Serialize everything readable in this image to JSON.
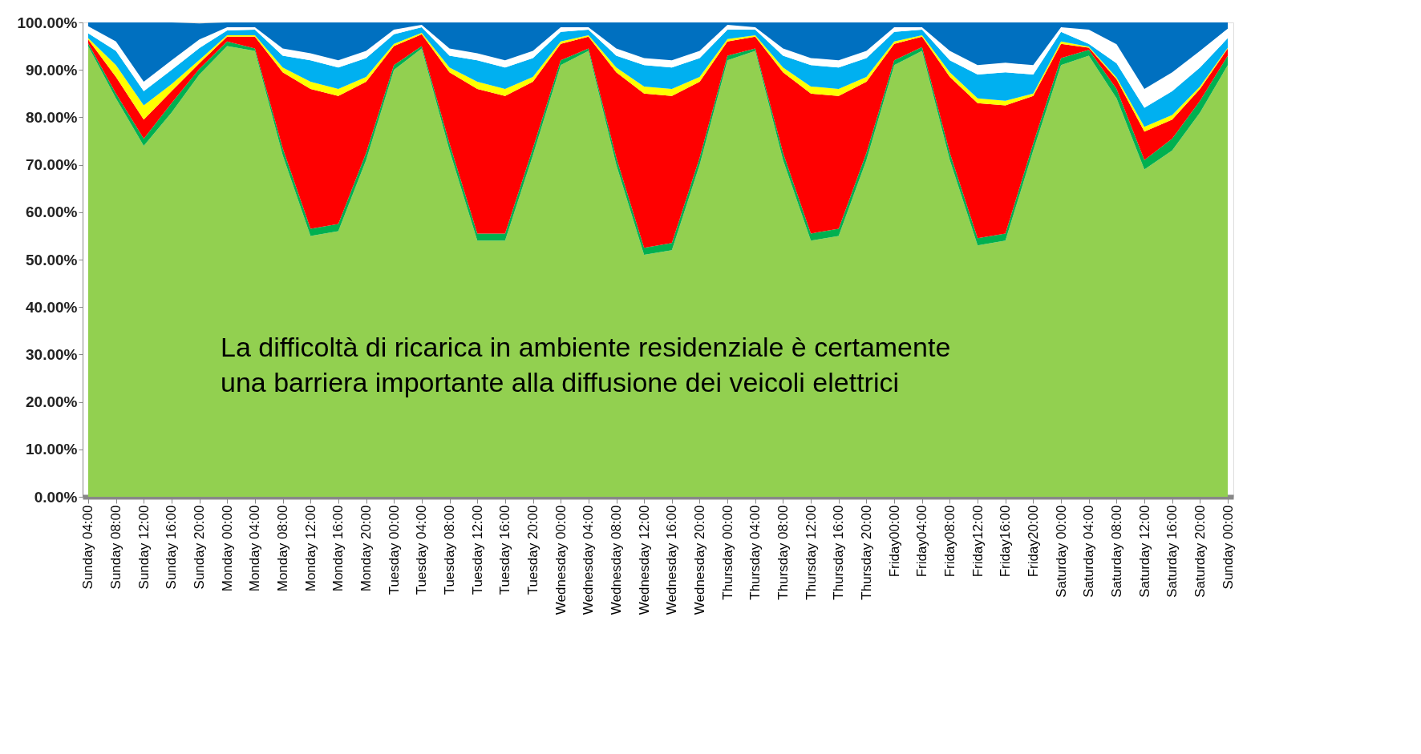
{
  "chart_data": {
    "type": "area",
    "stacked": true,
    "grid": false,
    "legend": false,
    "categories": [
      "Sunday 04:00",
      "Sunday 08:00",
      "Sunday 12:00",
      "Sunday 16:00",
      "Sunday 20:00",
      "Monday 00:00",
      "Monday 04:00",
      "Monday 08:00",
      "Monday 12:00",
      "Monday 16:00",
      "Monday 20:00",
      "Tuesday 00:00",
      "Tuesday 04:00",
      "Tuesday 08:00",
      "Tuesday 12:00",
      "Tuesday 16:00",
      "Tuesday 20:00",
      "Wednesday 00:00",
      "Wednesday 04:00",
      "Wednesday 08:00",
      "Wednesday 12:00",
      "Wednesday 16:00",
      "Wednesday 20:00",
      "Thursday 00:00",
      "Thursday 04:00",
      "Thursday 08:00",
      "Thursday 12:00",
      "Thursday 16:00",
      "Thursday 20:00",
      "Friday00:00",
      "Friday04:00",
      "Friday08:00",
      "Friday12:00",
      "Friday16:00",
      "Friday20:00",
      "Saturday 00:00",
      "Saturday 04:00",
      "Saturday 08:00",
      "Saturday 12:00",
      "Saturday 16:00",
      "Saturday 20:00",
      "Sunday 00:00"
    ],
    "ylim": [
      0,
      100
    ],
    "yticks": [
      {
        "value": 0,
        "label": "0.00%"
      },
      {
        "value": 10,
        "label": "10.00%"
      },
      {
        "value": 20,
        "label": "20.00%"
      },
      {
        "value": 30,
        "label": "30.00%"
      },
      {
        "value": 40,
        "label": "40.00%"
      },
      {
        "value": 50,
        "label": "50.00%"
      },
      {
        "value": 60,
        "label": "60.00%"
      },
      {
        "value": 70,
        "label": "70.00%"
      },
      {
        "value": 80,
        "label": "80.00%"
      },
      {
        "value": 90,
        "label": "90.00%"
      },
      {
        "value": 100,
        "label": "100.00%"
      }
    ],
    "series": [
      {
        "color": "#92d050",
        "values": [
          95,
          84,
          74,
          81,
          89,
          95,
          94,
          72,
          55,
          56,
          71,
          90,
          94.5,
          73,
          54,
          54,
          72,
          91,
          94,
          70,
          51,
          52,
          70,
          92,
          94,
          71,
          54,
          55,
          71,
          91,
          94,
          71,
          53,
          54,
          73,
          91,
          93,
          84,
          69,
          73,
          81,
          91
        ]
      },
      {
        "color": "#00b050",
        "values": [
          0.6,
          1,
          1.5,
          2,
          1.2,
          1,
          0.5,
          1.5,
          1.5,
          1.5,
          1.5,
          1,
          0.5,
          1.5,
          1.5,
          1.5,
          1.5,
          1,
          0.5,
          1.5,
          1.5,
          1.5,
          1.5,
          1,
          0.5,
          1.5,
          1.5,
          1.5,
          1.5,
          1,
          0.8,
          1.5,
          1.5,
          1.5,
          1.5,
          1.5,
          1.2,
          2,
          2,
          2.5,
          2.5,
          2
        ]
      },
      {
        "color": "#ff0000",
        "values": [
          0.8,
          3.5,
          4,
          2.5,
          1.2,
          1,
          2.5,
          16,
          29.5,
          27,
          15,
          4,
          2.5,
          15,
          30.5,
          29,
          14,
          3.5,
          2.5,
          18,
          32.5,
          31,
          16,
          3,
          2.5,
          17,
          29.5,
          28,
          15,
          3.5,
          2.2,
          16,
          28.5,
          27,
          10,
          3,
          0.5,
          2,
          6,
          4,
          2.5,
          1.5
        ]
      },
      {
        "color": "#ffff00",
        "values": [
          0.3,
          2.5,
          3,
          1.5,
          0.7,
          0.3,
          0.3,
          1,
          1.5,
          1.5,
          1,
          0.5,
          0.3,
          1,
          1.5,
          1.5,
          1,
          0.5,
          0.3,
          1,
          1.5,
          1.5,
          1,
          0.5,
          0.3,
          1,
          1.5,
          1.5,
          1,
          0.5,
          0.3,
          1,
          1,
          1,
          0.5,
          0.5,
          0.2,
          0.4,
          1,
          1,
          0.5,
          0.2
        ]
      },
      {
        "color": "#00b0f0",
        "values": [
          1,
          3,
          3,
          3,
          2.5,
          1,
          1.2,
          2.5,
          4.5,
          4.5,
          4,
          2,
          1.2,
          2.5,
          4.5,
          4.5,
          4,
          2,
          1.2,
          2.5,
          4.5,
          4.5,
          4,
          2,
          1.2,
          2.5,
          4.5,
          4.5,
          4,
          2,
          1.2,
          2.5,
          5,
          6,
          4,
          2,
          0.6,
          3,
          4,
          5,
          4,
          2
        ]
      },
      {
        "color": "#ffffff",
        "values": [
          1.5,
          2,
          2,
          2,
          1.8,
          0.7,
          0.5,
          1.5,
          1.5,
          1.5,
          1.5,
          1,
          0.5,
          1.5,
          1.5,
          1.5,
          1.5,
          1,
          0.5,
          1.5,
          1.5,
          1.5,
          1.5,
          1,
          0.5,
          1.5,
          1.5,
          1.5,
          1.5,
          1,
          0.5,
          2,
          2,
          2,
          2,
          1,
          3,
          4,
          4,
          4,
          3.5,
          2
        ]
      },
      {
        "color": "#0070c0",
        "values": [
          0.8,
          4,
          12.5,
          8,
          3.4,
          1,
          1,
          5.5,
          6.5,
          8,
          6,
          1.5,
          0.5,
          5.5,
          6.5,
          8,
          6,
          1,
          1,
          5.5,
          7.5,
          8,
          6,
          0.5,
          1,
          5.5,
          7.5,
          8,
          6,
          1,
          1,
          6,
          9,
          8.5,
          9,
          1,
          1.5,
          4.6,
          14,
          10.5,
          6,
          1.3
        ]
      }
    ],
    "annotations": [
      "La difficoltà di ricarica in ambiente residenziale è certamente\nuna barriera importante alla diffusione dei veicoli elettrici"
    ]
  }
}
